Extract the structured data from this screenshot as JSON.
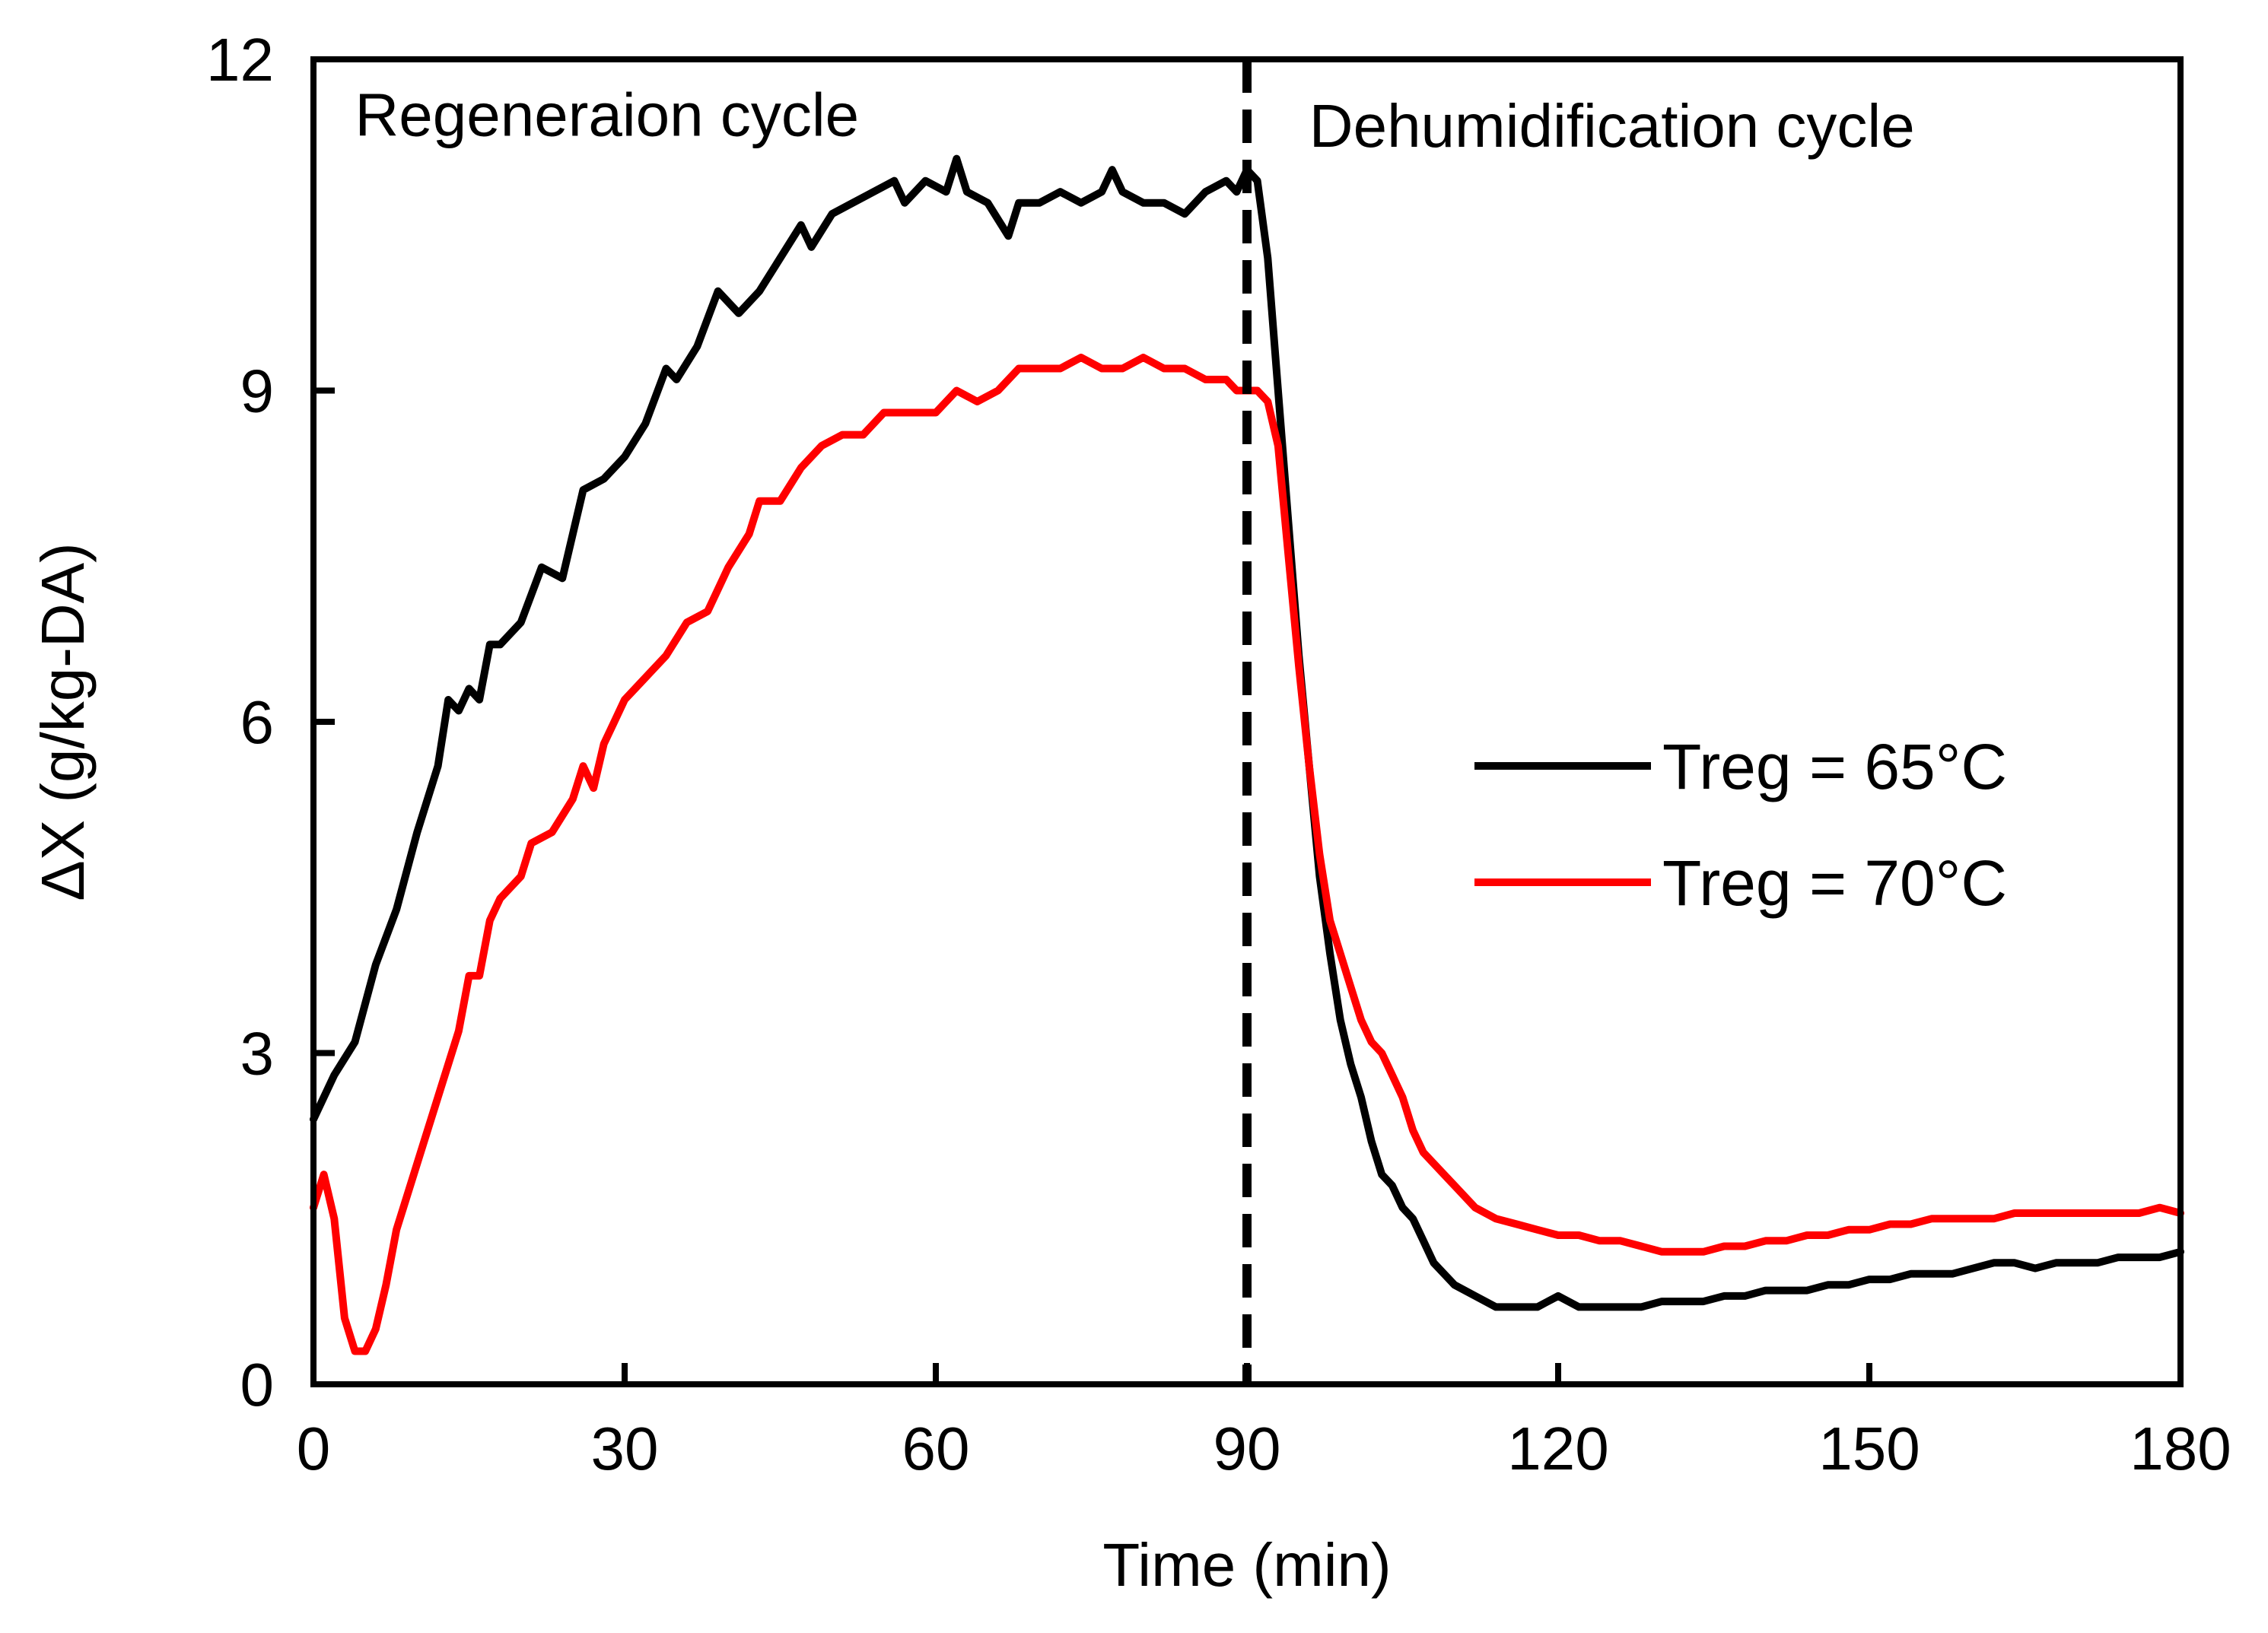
{
  "chart_data": {
    "type": "line",
    "title": "",
    "xlabel": "Time (min)",
    "ylabel": "ΔX (g/kg-DA)",
    "xlim": [
      0,
      180
    ],
    "ylim": [
      0,
      12
    ],
    "xticks": [
      0,
      30,
      60,
      90,
      120,
      150,
      180
    ],
    "yticks": [
      0,
      3,
      6,
      9,
      12
    ],
    "xtick_labels": [
      "0",
      "30",
      "60",
      "90",
      "120",
      "150",
      "180"
    ],
    "ytick_labels": [
      "0",
      "3",
      "6",
      "9",
      "12"
    ],
    "grid": false,
    "legend_position": "right",
    "annotations": [
      {
        "text": "Regeneraion cycle",
        "x": 4,
        "y": 11.5
      },
      {
        "text": "Dehumidification cycle",
        "x": 96,
        "y": 11.4
      }
    ],
    "divider": {
      "x": 90,
      "style": "dashed"
    },
    "series": [
      {
        "name": "Treg = 65°C",
        "color": "#000000",
        "points": [
          [
            0,
            2.4
          ],
          [
            2,
            2.8
          ],
          [
            4,
            3.1
          ],
          [
            6,
            3.8
          ],
          [
            8,
            4.3
          ],
          [
            10,
            5.0
          ],
          [
            12,
            5.6
          ],
          [
            13,
            6.2
          ],
          [
            14,
            6.1
          ],
          [
            15,
            6.3
          ],
          [
            16,
            6.2
          ],
          [
            17,
            6.7
          ],
          [
            18,
            6.7
          ],
          [
            20,
            6.9
          ],
          [
            22,
            7.4
          ],
          [
            24,
            7.3
          ],
          [
            26,
            8.1
          ],
          [
            28,
            8.2
          ],
          [
            30,
            8.4
          ],
          [
            32,
            8.7
          ],
          [
            34,
            9.2
          ],
          [
            35,
            9.1
          ],
          [
            37,
            9.4
          ],
          [
            39,
            9.9
          ],
          [
            41,
            9.7
          ],
          [
            43,
            9.9
          ],
          [
            45,
            10.2
          ],
          [
            47,
            10.5
          ],
          [
            48,
            10.3
          ],
          [
            50,
            10.6
          ],
          [
            52,
            10.7
          ],
          [
            54,
            10.8
          ],
          [
            56,
            10.9
          ],
          [
            57,
            10.7
          ],
          [
            59,
            10.9
          ],
          [
            61,
            10.8
          ],
          [
            62,
            11.1
          ],
          [
            63,
            10.8
          ],
          [
            65,
            10.7
          ],
          [
            67,
            10.4
          ],
          [
            68,
            10.7
          ],
          [
            70,
            10.7
          ],
          [
            72,
            10.8
          ],
          [
            74,
            10.7
          ],
          [
            76,
            10.8
          ],
          [
            77,
            11.0
          ],
          [
            78,
            10.8
          ],
          [
            80,
            10.7
          ],
          [
            82,
            10.7
          ],
          [
            84,
            10.6
          ],
          [
            86,
            10.8
          ],
          [
            88,
            10.9
          ],
          [
            89,
            10.8
          ],
          [
            90,
            11.0
          ],
          [
            91,
            10.9
          ],
          [
            92,
            10.2
          ],
          [
            93,
            9.0
          ],
          [
            94,
            7.8
          ],
          [
            95,
            6.6
          ],
          [
            96,
            5.6
          ],
          [
            97,
            4.6
          ],
          [
            98,
            3.9
          ],
          [
            99,
            3.3
          ],
          [
            100,
            2.9
          ],
          [
            101,
            2.6
          ],
          [
            102,
            2.2
          ],
          [
            103,
            1.9
          ],
          [
            104,
            1.8
          ],
          [
            105,
            1.6
          ],
          [
            106,
            1.5
          ],
          [
            107,
            1.3
          ],
          [
            108,
            1.1
          ],
          [
            110,
            0.9
          ],
          [
            112,
            0.8
          ],
          [
            114,
            0.7
          ],
          [
            116,
            0.7
          ],
          [
            118,
            0.7
          ],
          [
            120,
            0.8
          ],
          [
            122,
            0.7
          ],
          [
            124,
            0.7
          ],
          [
            126,
            0.7
          ],
          [
            128,
            0.7
          ],
          [
            130,
            0.75
          ],
          [
            132,
            0.75
          ],
          [
            134,
            0.75
          ],
          [
            136,
            0.8
          ],
          [
            138,
            0.8
          ],
          [
            140,
            0.85
          ],
          [
            142,
            0.85
          ],
          [
            144,
            0.85
          ],
          [
            146,
            0.9
          ],
          [
            148,
            0.9
          ],
          [
            150,
            0.95
          ],
          [
            152,
            0.95
          ],
          [
            154,
            1.0
          ],
          [
            156,
            1.0
          ],
          [
            158,
            1.0
          ],
          [
            160,
            1.05
          ],
          [
            162,
            1.1
          ],
          [
            164,
            1.1
          ],
          [
            166,
            1.05
          ],
          [
            168,
            1.1
          ],
          [
            170,
            1.1
          ],
          [
            172,
            1.1
          ],
          [
            174,
            1.15
          ],
          [
            176,
            1.15
          ],
          [
            178,
            1.15
          ],
          [
            180,
            1.2
          ]
        ]
      },
      {
        "name": "Treg = 70°C",
        "color": "#ff0000",
        "points": [
          [
            0,
            1.6
          ],
          [
            1,
            1.9
          ],
          [
            2,
            1.5
          ],
          [
            3,
            0.6
          ],
          [
            4,
            0.3
          ],
          [
            5,
            0.3
          ],
          [
            6,
            0.5
          ],
          [
            7,
            0.9
          ],
          [
            8,
            1.4
          ],
          [
            9,
            1.7
          ],
          [
            10,
            2.0
          ],
          [
            12,
            2.6
          ],
          [
            14,
            3.2
          ],
          [
            15,
            3.7
          ],
          [
            16,
            3.7
          ],
          [
            17,
            4.2
          ],
          [
            18,
            4.4
          ],
          [
            20,
            4.6
          ],
          [
            21,
            4.9
          ],
          [
            23,
            5.0
          ],
          [
            25,
            5.3
          ],
          [
            26,
            5.6
          ],
          [
            27,
            5.4
          ],
          [
            28,
            5.8
          ],
          [
            29,
            6.0
          ],
          [
            30,
            6.2
          ],
          [
            32,
            6.4
          ],
          [
            34,
            6.6
          ],
          [
            36,
            6.9
          ],
          [
            38,
            7.0
          ],
          [
            40,
            7.4
          ],
          [
            42,
            7.7
          ],
          [
            43,
            8.0
          ],
          [
            45,
            8.0
          ],
          [
            47,
            8.3
          ],
          [
            49,
            8.5
          ],
          [
            51,
            8.6
          ],
          [
            53,
            8.6
          ],
          [
            55,
            8.8
          ],
          [
            56,
            8.8
          ],
          [
            58,
            8.8
          ],
          [
            60,
            8.8
          ],
          [
            62,
            9.0
          ],
          [
            64,
            8.9
          ],
          [
            66,
            9.0
          ],
          [
            68,
            9.2
          ],
          [
            70,
            9.2
          ],
          [
            72,
            9.2
          ],
          [
            74,
            9.3
          ],
          [
            76,
            9.2
          ],
          [
            78,
            9.2
          ],
          [
            80,
            9.3
          ],
          [
            82,
            9.2
          ],
          [
            84,
            9.2
          ],
          [
            86,
            9.1
          ],
          [
            88,
            9.1
          ],
          [
            89,
            9.0
          ],
          [
            90,
            9.0
          ],
          [
            91,
            9.0
          ],
          [
            92,
            8.9
          ],
          [
            93,
            8.5
          ],
          [
            94,
            7.5
          ],
          [
            95,
            6.5
          ],
          [
            96,
            5.6
          ],
          [
            97,
            4.8
          ],
          [
            98,
            4.2
          ],
          [
            99,
            3.9
          ],
          [
            100,
            3.6
          ],
          [
            101,
            3.3
          ],
          [
            102,
            3.1
          ],
          [
            103,
            3.0
          ],
          [
            104,
            2.8
          ],
          [
            105,
            2.6
          ],
          [
            106,
            2.3
          ],
          [
            107,
            2.1
          ],
          [
            108,
            2.0
          ],
          [
            110,
            1.8
          ],
          [
            112,
            1.6
          ],
          [
            114,
            1.5
          ],
          [
            116,
            1.45
          ],
          [
            118,
            1.4
          ],
          [
            120,
            1.35
          ],
          [
            122,
            1.35
          ],
          [
            124,
            1.3
          ],
          [
            126,
            1.3
          ],
          [
            128,
            1.25
          ],
          [
            130,
            1.2
          ],
          [
            132,
            1.2
          ],
          [
            134,
            1.2
          ],
          [
            136,
            1.25
          ],
          [
            138,
            1.25
          ],
          [
            140,
            1.3
          ],
          [
            142,
            1.3
          ],
          [
            144,
            1.35
          ],
          [
            146,
            1.35
          ],
          [
            148,
            1.4
          ],
          [
            150,
            1.4
          ],
          [
            152,
            1.45
          ],
          [
            154,
            1.45
          ],
          [
            156,
            1.5
          ],
          [
            158,
            1.5
          ],
          [
            160,
            1.5
          ],
          [
            162,
            1.5
          ],
          [
            164,
            1.55
          ],
          [
            166,
            1.55
          ],
          [
            168,
            1.55
          ],
          [
            170,
            1.55
          ],
          [
            172,
            1.55
          ],
          [
            174,
            1.55
          ],
          [
            176,
            1.55
          ],
          [
            178,
            1.6
          ],
          [
            180,
            1.55
          ]
        ]
      }
    ]
  }
}
